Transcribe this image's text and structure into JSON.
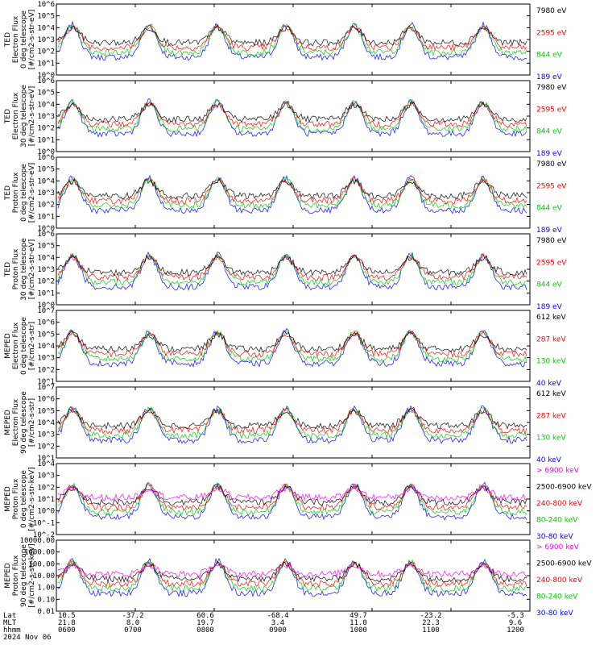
{
  "colors": {
    "blue": "#0000ff",
    "red": "#ff0000",
    "green": "#00cc00",
    "black": "#000000",
    "magenta": "#ff00ff",
    "frame": "#000000"
  },
  "chart_data": [
    {
      "type": "line",
      "ylabel": [
        "TED",
        "Electron Flux",
        "0 deg telescope",
        "[#/cm2-s-str-eV]"
      ],
      "log": true,
      "ylim": [
        1,
        1000000
      ],
      "ticks": [
        "10^0",
        "10^1",
        "10^2",
        "10^3",
        "10^4",
        "10^5",
        "10^6"
      ],
      "channels": [
        {
          "label": "7980 eV",
          "color": "#000000"
        },
        {
          "label": "2595 eV",
          "color": "#ff0000"
        },
        {
          "label": "844 eV",
          "color": "#00cc00"
        },
        {
          "label": "189 eV",
          "color": "#0000ff"
        }
      ]
    },
    {
      "type": "line",
      "ylabel": [
        "TED",
        "Electron Flux",
        "30 deg telescope",
        "[#/cm2-s-str-eV]"
      ],
      "log": true,
      "ylim": [
        1,
        1000000
      ],
      "ticks": [
        "10^0",
        "10^1",
        "10^2",
        "10^3",
        "10^4",
        "10^5",
        "10^6"
      ],
      "channels": [
        {
          "label": "7980 eV",
          "color": "#000000"
        },
        {
          "label": "2595 eV",
          "color": "#ff0000"
        },
        {
          "label": "844 eV",
          "color": "#00cc00"
        },
        {
          "label": "189 eV",
          "color": "#0000ff"
        }
      ]
    },
    {
      "type": "line",
      "ylabel": [
        "TED",
        "Proton Flux",
        "0 deg telescope",
        "[#/cm2-s-str-eV]"
      ],
      "log": true,
      "ylim": [
        1,
        1000000
      ],
      "ticks": [
        "10^0",
        "10^1",
        "10^2",
        "10^3",
        "10^4",
        "10^5",
        "10^6"
      ],
      "channels": [
        {
          "label": "7980 eV",
          "color": "#000000"
        },
        {
          "label": "2595 eV",
          "color": "#ff0000"
        },
        {
          "label": "844 eV",
          "color": "#00cc00"
        },
        {
          "label": "189 eV",
          "color": "#0000ff"
        }
      ]
    },
    {
      "type": "line",
      "ylabel": [
        "TED",
        "Proton Flux",
        "30 deg telescope",
        "[#/cm2-s-str-eV]"
      ],
      "log": true,
      "ylim": [
        1,
        1000000
      ],
      "ticks": [
        "10^0",
        "10^1",
        "10^2",
        "10^3",
        "10^4",
        "10^5",
        "10^6"
      ],
      "channels": [
        {
          "label": "7980 eV",
          "color": "#000000"
        },
        {
          "label": "2595 eV",
          "color": "#ff0000"
        },
        {
          "label": "844 eV",
          "color": "#00cc00"
        },
        {
          "label": "189 eV",
          "color": "#0000ff"
        }
      ]
    },
    {
      "type": "line",
      "ylabel": [
        "MEPED",
        "Electron Flux",
        "0 deg telescope",
        "[#/cm2-s-str]"
      ],
      "log": true,
      "ylim": [
        10,
        10000000
      ],
      "ticks": [
        "10^1",
        "10^2",
        "10^3",
        "10^4",
        "10^5",
        "10^6",
        "10^7"
      ],
      "channels": [
        {
          "label": "612 keV",
          "color": "#000000"
        },
        {
          "label": "287 keV",
          "color": "#ff0000"
        },
        {
          "label": "130 keV",
          "color": "#00cc00"
        },
        {
          "label": "40 keV",
          "color": "#0000ff"
        }
      ]
    },
    {
      "type": "line",
      "ylabel": [
        "MEPED",
        "Electron Flux",
        "90 deg telescope",
        "[#/cm2-s-str]"
      ],
      "log": true,
      "ylim": [
        10,
        10000000
      ],
      "ticks": [
        "10^1",
        "10^2",
        "10^3",
        "10^4",
        "10^5",
        "10^6",
        "10^7"
      ],
      "channels": [
        {
          "label": "612 keV",
          "color": "#000000"
        },
        {
          "label": "287 keV",
          "color": "#ff0000"
        },
        {
          "label": "130 keV",
          "color": "#00cc00"
        },
        {
          "label": "40 keV",
          "color": "#0000ff"
        }
      ]
    },
    {
      "type": "line",
      "ylabel": [
        "MEPED",
        "Proton Flux",
        "0 deg telescope",
        "[#/cm2-s-str-keV]"
      ],
      "log": true,
      "ylim": [
        0.01,
        10000
      ],
      "ticks": [
        "10^-2",
        "10^-1",
        "10^0",
        "10^1",
        "10^2",
        "10^3",
        "10^4"
      ],
      "channels": [
        {
          "label": "> 6900 keV",
          "color": "#ff00ff"
        },
        {
          "label": "2500-6900 keV",
          "color": "#000000"
        },
        {
          "label": "240-800 keV",
          "color": "#ff0000"
        },
        {
          "label": "80-240 keV",
          "color": "#00cc00"
        },
        {
          "label": "30-80 keV",
          "color": "#0000ff"
        }
      ]
    },
    {
      "type": "line",
      "ylabel": [
        "MEPED",
        "Proton Flux",
        "90 deg telescope",
        "[#/cm2-s-str-keV]"
      ],
      "log": true,
      "ylim": [
        0.01,
        10000
      ],
      "ticks": [
        "0.01",
        "0.10",
        "1.00",
        "10.00",
        "100.00",
        "1000.00",
        "10000.00"
      ],
      "channels": [
        {
          "label": "> 6900 keV",
          "color": "#ff00ff"
        },
        {
          "label": "2500-6900 keV",
          "color": "#000000"
        },
        {
          "label": "240-800 keV",
          "color": "#ff0000"
        },
        {
          "label": "80-240 keV",
          "color": "#00cc00"
        },
        {
          "label": "30-80 keV",
          "color": "#0000ff"
        }
      ]
    }
  ],
  "x_axis": {
    "row_labels": [
      "Lat",
      "MLT",
      "hhmm"
    ],
    "date": "2024 Nov 06",
    "ticks": [
      {
        "lat": "10.5",
        "mlt": "21.8",
        "hhmm": "0600"
      },
      {
        "lat": "-37.2",
        "mlt": "8.0",
        "hhmm": "0700"
      },
      {
        "lat": "60.6",
        "mlt": "19.7",
        "hhmm": "0800"
      },
      {
        "lat": "-68.4",
        "mlt": "3.4",
        "hhmm": "0900"
      },
      {
        "lat": "49.7",
        "mlt": "11.0",
        "hhmm": "1000"
      },
      {
        "lat": "-23.2",
        "mlt": "22.3",
        "hhmm": "1100"
      },
      {
        "lat": "-5.3",
        "mlt": "9.6",
        "hhmm": "1200"
      }
    ]
  }
}
